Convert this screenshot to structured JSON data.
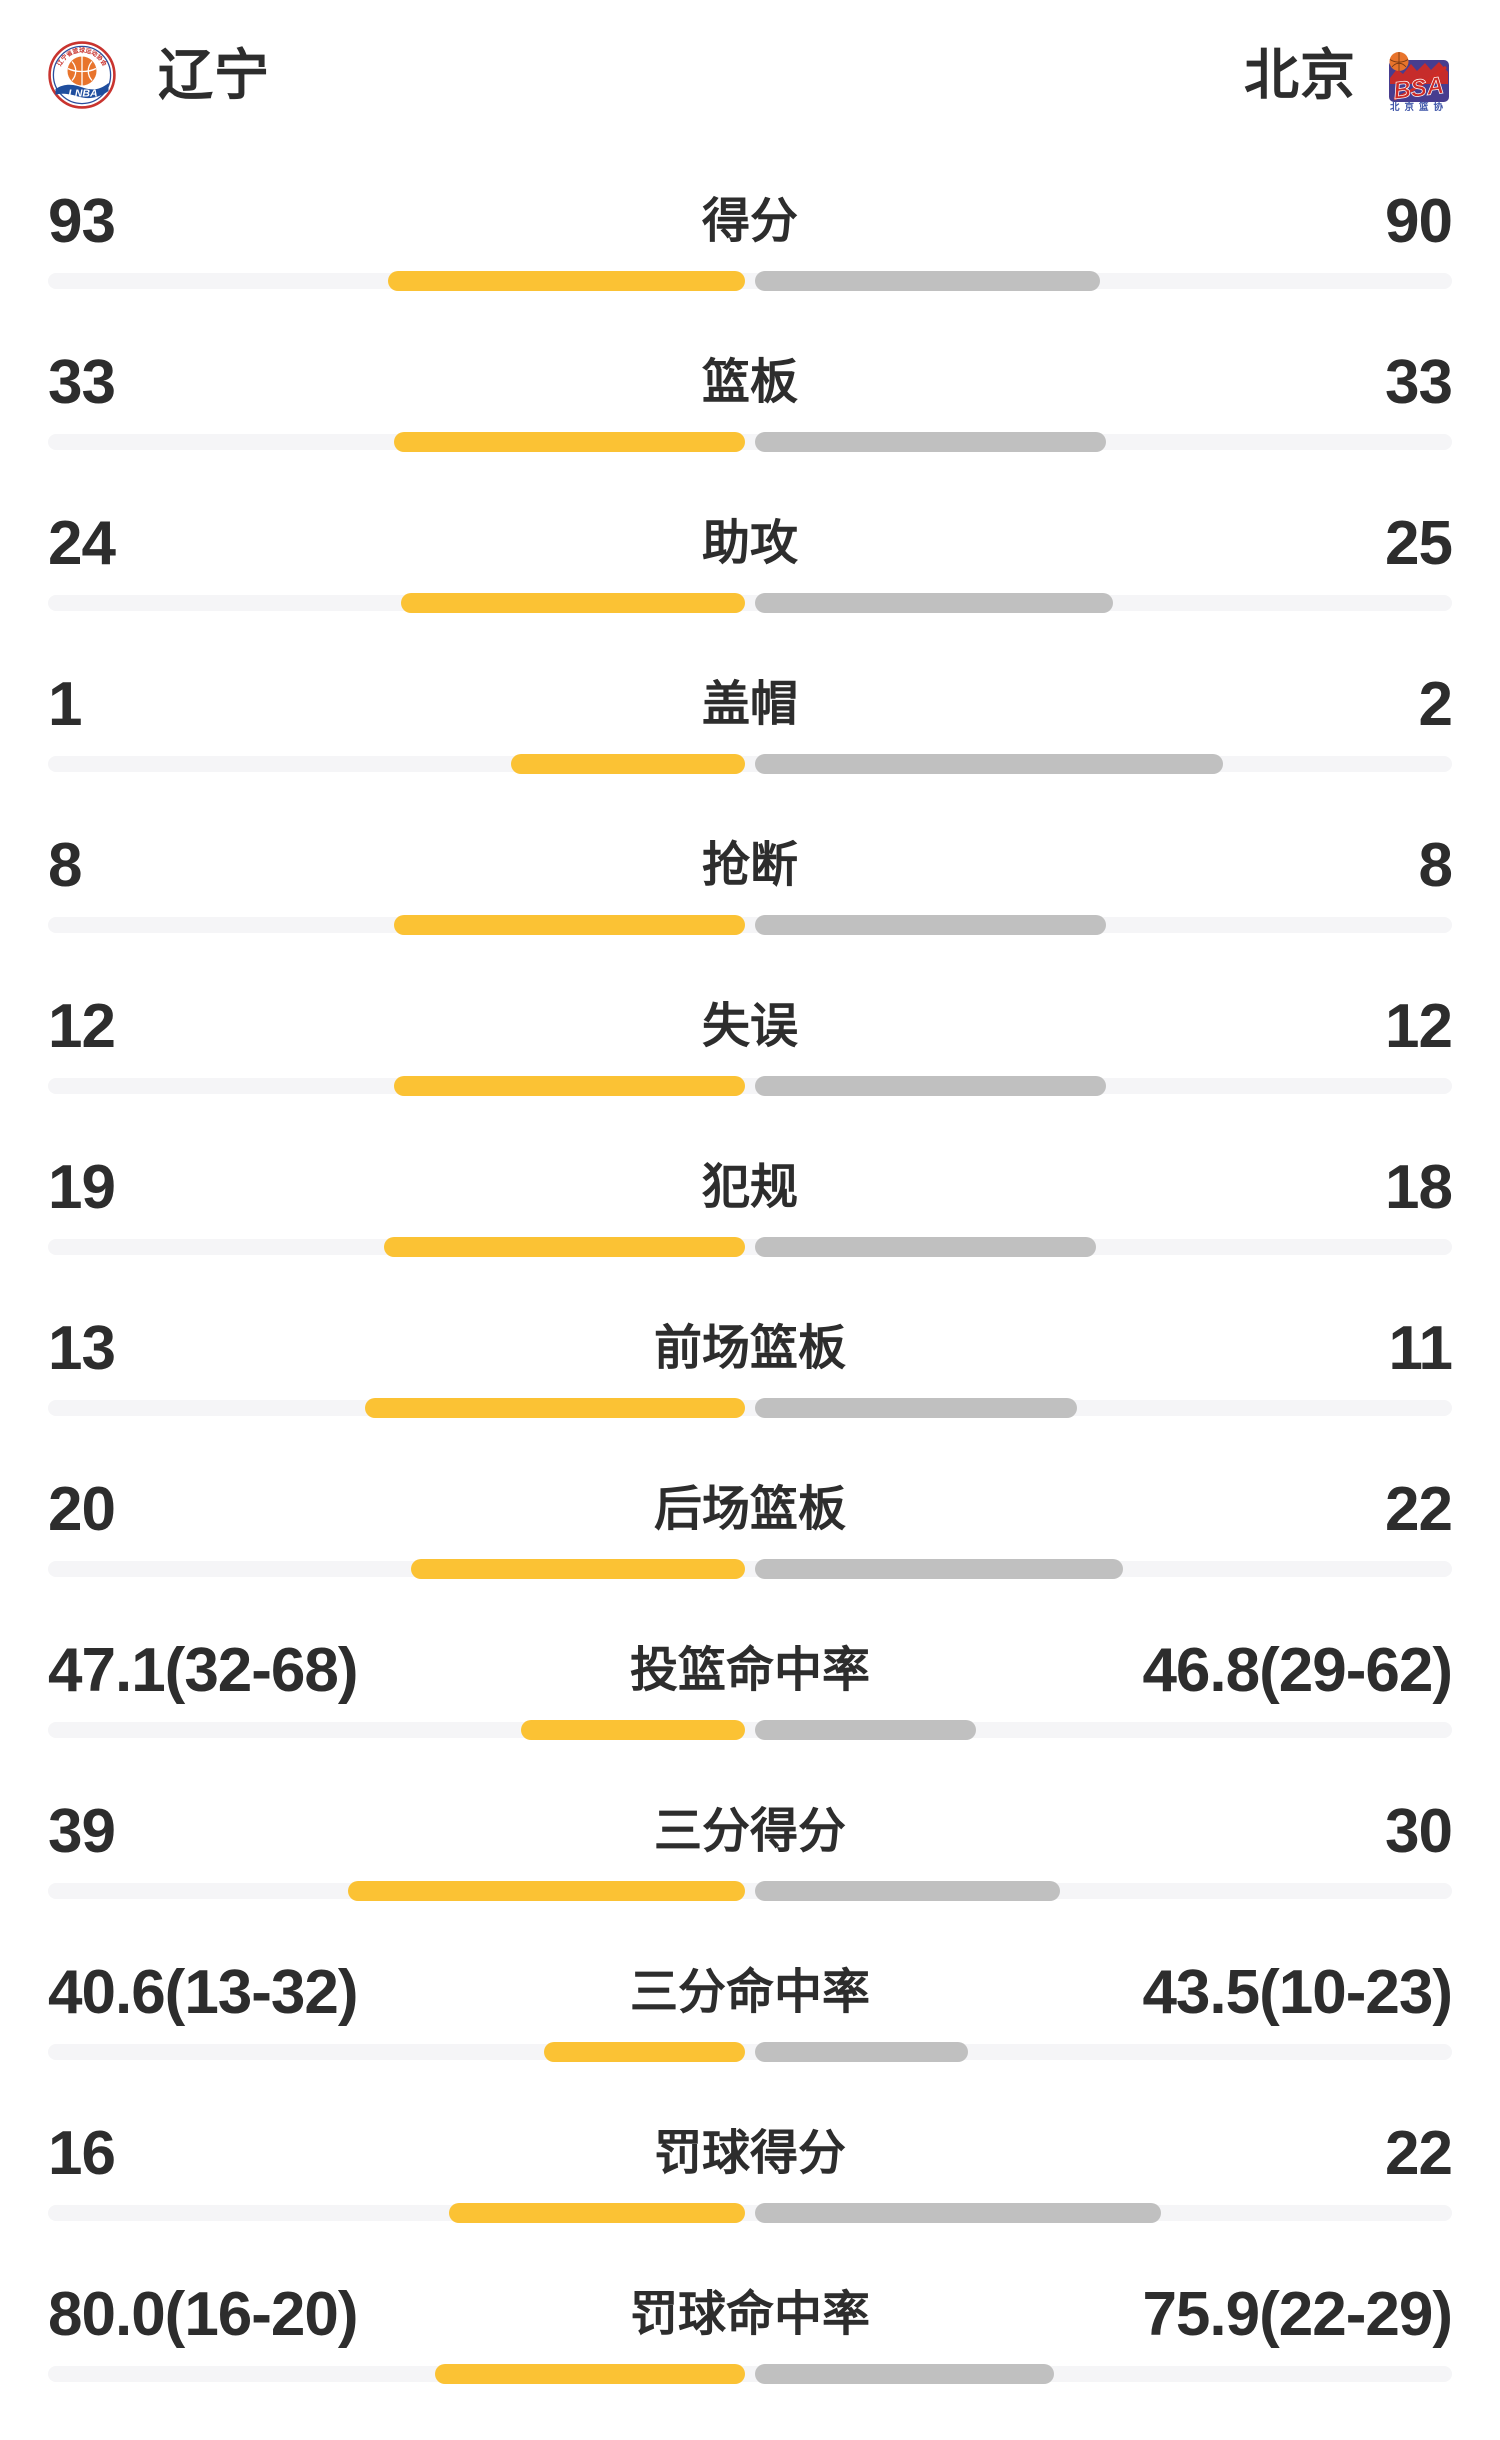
{
  "header": {
    "home": {
      "name": "辽宁",
      "logo_arc_text": "辽宁省篮球运动协会",
      "logo_caption": "LNBA"
    },
    "away": {
      "name": "北京",
      "logo_text": "BSA",
      "logo_caption": "北京篮协"
    }
  },
  "colors": {
    "home": "#FBC234",
    "away": "#C0C0C0",
    "track": "#F5F5F7",
    "text": "#2D2D2D",
    "page": "#FFFFFF"
  },
  "chart_data": {
    "type": "bar",
    "orientation": "horizontal-paired",
    "left_series": "辽宁",
    "right_series": "北京",
    "left_color": "#FBC234",
    "right_color": "#C0C0C0",
    "rows": [
      {
        "label": "得分",
        "left": "93",
        "right": "90",
        "left_value": 93,
        "right_value": 90,
        "left_w": 0.2541,
        "right_w": 0.2459
      },
      {
        "label": "篮板",
        "left": "33",
        "right": "33",
        "left_value": 33,
        "right_value": 33,
        "left_w": 0.25,
        "right_w": 0.25
      },
      {
        "label": "助攻",
        "left": "24",
        "right": "25",
        "left_value": 24,
        "right_value": 25,
        "left_w": 0.2449,
        "right_w": 0.2551
      },
      {
        "label": "盖帽",
        "left": "1",
        "right": "2",
        "left_value": 1,
        "right_value": 2,
        "left_w": 0.1667,
        "right_w": 0.3333
      },
      {
        "label": "抢断",
        "left": "8",
        "right": "8",
        "left_value": 8,
        "right_value": 8,
        "left_w": 0.25,
        "right_w": 0.25
      },
      {
        "label": "失误",
        "left": "12",
        "right": "12",
        "left_value": 12,
        "right_value": 12,
        "left_w": 0.25,
        "right_w": 0.25
      },
      {
        "label": "犯规",
        "left": "19",
        "right": "18",
        "left_value": 19,
        "right_value": 18,
        "left_w": 0.2568,
        "right_w": 0.2432
      },
      {
        "label": "前场篮板",
        "left": "13",
        "right": "11",
        "left_value": 13,
        "right_value": 11,
        "left_w": 0.2708,
        "right_w": 0.2292
      },
      {
        "label": "后场篮板",
        "left": "20",
        "right": "22",
        "left_value": 20,
        "right_value": 22,
        "left_w": 0.2381,
        "right_w": 0.2619
      },
      {
        "label": "投篮命中率",
        "left": "47.1(32-68)",
        "right": "46.8(29-62)",
        "left_value": 47.1,
        "right_value": 46.8,
        "left_made": 32,
        "left_att": 68,
        "right_made": 29,
        "right_att": 62,
        "left_w": 0.1595,
        "right_w": 0.1574
      },
      {
        "label": "三分得分",
        "left": "39",
        "right": "30",
        "left_value": 39,
        "right_value": 30,
        "left_w": 0.2826,
        "right_w": 0.2174
      },
      {
        "label": "三分命中率",
        "left": "40.6(13-32)",
        "right": "43.5(10-23)",
        "left_value": 40.6,
        "right_value": 43.5,
        "left_made": 13,
        "left_att": 32,
        "right_made": 10,
        "right_att": 23,
        "left_w": 0.1432,
        "right_w": 0.1517
      },
      {
        "label": "罚球得分",
        "left": "16",
        "right": "22",
        "left_value": 16,
        "right_value": 22,
        "left_w": 0.2105,
        "right_w": 0.2895
      },
      {
        "label": "罚球命中率",
        "left": "80.0(16-20)",
        "right": "75.9(22-29)",
        "left_value": 80.0,
        "right_value": 75.9,
        "left_made": 16,
        "left_att": 20,
        "right_made": 22,
        "right_att": 29,
        "left_w": 0.2208,
        "right_w": 0.213
      }
    ]
  }
}
